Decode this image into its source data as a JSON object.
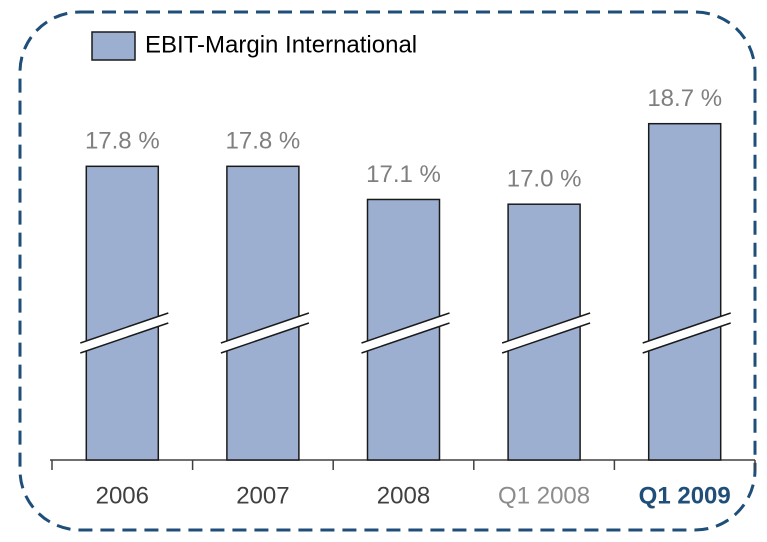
{
  "chart_data": {
    "type": "bar",
    "categories": [
      "2006",
      "2007",
      "2008",
      "Q1 2008",
      "Q1 2009"
    ],
    "series": [
      {
        "name": "EBIT-Margin International",
        "color": "#9dafd0",
        "values": [
          17.8,
          17.8,
          17.1,
          17.0,
          18.7
        ],
        "value_labels": [
          "17.8 %",
          "17.8 %",
          "17.1 %",
          "17.0 %",
          "18.7 %"
        ]
      }
    ],
    "ylim": [
      11.6,
      19.2
    ]
  }
}
